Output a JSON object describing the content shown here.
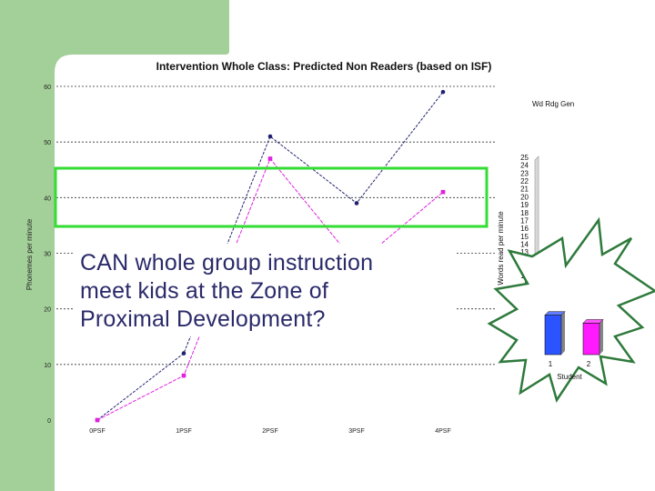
{
  "slide": {
    "question_lines": [
      "CAN whole group instruction",
      "meet kids at the Zone of",
      "Proximal Development?"
    ],
    "colors": {
      "sidebar_green": "#a3cf98",
      "highlight_box": "#33dd33",
      "series_blue": "#202070",
      "series_magenta": "#e020e0",
      "bar_blue": "#2b53ff",
      "bar_magenta": "#ff1aff"
    }
  },
  "chart_data": [
    {
      "type": "line",
      "title": "Intervention Whole Class: Predicted Non Readers (based on ISF)",
      "ylabel": "Phonemes per minute",
      "xlabel": "",
      "categories": [
        "0PSF",
        "1PSF",
        "2PSF",
        "3PSF",
        "4PSF"
      ],
      "ylim": [
        0,
        60
      ],
      "yticks": [
        0,
        10,
        20,
        30,
        40,
        50,
        60
      ],
      "grid": true,
      "series": [
        {
          "values": [
            0,
            12,
            51,
            39,
            59
          ],
          "color": "#202070",
          "marker": "circle"
        },
        {
          "values": [
            0,
            8,
            47,
            28,
            41
          ],
          "color": "#e020e0",
          "marker": "square"
        }
      ]
    },
    {
      "type": "bar",
      "title": "Wd Rdg Gen",
      "ylabel": "Words read per minute",
      "xlabel": "Student",
      "categories": [
        "1",
        "2"
      ],
      "values": [
        5,
        4
      ],
      "bar_colors": [
        "#2b53ff",
        "#ff1aff"
      ],
      "ylim": [
        0,
        25
      ],
      "yticks": [
        0,
        1,
        2,
        3,
        4,
        5,
        6,
        7,
        8,
        9,
        10,
        11,
        12,
        13,
        14,
        15,
        16,
        17,
        18,
        19,
        20,
        21,
        22,
        23,
        24,
        25
      ]
    }
  ]
}
